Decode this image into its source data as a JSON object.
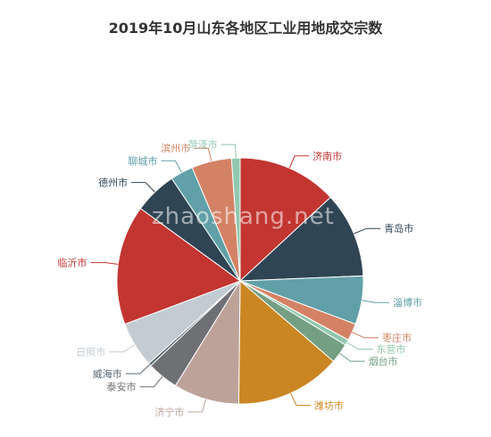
{
  "chart_data": {
    "type": "pie",
    "title": "2019年10月山东各地区工业用地成交宗数",
    "watermark": "zhaoshang.net",
    "slices": [
      {
        "name": "济南市",
        "value": 35,
        "color": "#c23531"
      },
      {
        "name": "青岛市",
        "value": 30,
        "color": "#2f4554"
      },
      {
        "name": "淄博市",
        "value": 17,
        "color": "#61a0a8"
      },
      {
        "name": "枣庄市",
        "value": 6,
        "color": "#d48265"
      },
      {
        "name": "东营市",
        "value": 2,
        "color": "#91c7ae"
      },
      {
        "name": "烟台市",
        "value": 7,
        "color": "#749f83"
      },
      {
        "name": "潍坊市",
        "value": 37,
        "color": "#ca8622"
      },
      {
        "name": "济宁市",
        "value": 23,
        "color": "#bda29a"
      },
      {
        "name": "泰安市",
        "value": 11,
        "color": "#6e7074"
      },
      {
        "name": "威海市",
        "value": 1,
        "color": "#546570"
      },
      {
        "name": "日照市",
        "value": 16,
        "color": "#c4ccd3"
      },
      {
        "name": "临沂市",
        "value": 42,
        "color": "#c23531"
      },
      {
        "name": "德州市",
        "value": 15,
        "color": "#2f4554"
      },
      {
        "name": "聊城市",
        "value": 8,
        "color": "#61a0a8"
      },
      {
        "name": "滨州市",
        "value": 14,
        "color": "#d48265"
      },
      {
        "name": "菏泽市",
        "value": 3,
        "color": "#91c7ae"
      }
    ]
  }
}
